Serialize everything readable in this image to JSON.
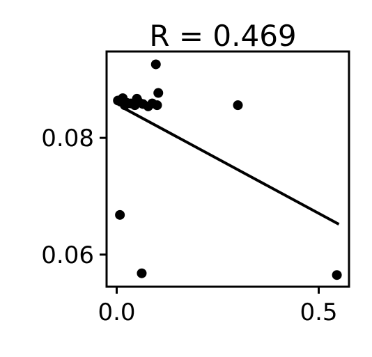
{
  "chart_data": {
    "type": "scatter",
    "title": "R = 0.469",
    "xlabel": "",
    "ylabel": "",
    "xlim": [
      -0.025,
      0.575
    ],
    "ylim": [
      0.0545,
      0.0948
    ],
    "x_ticks": [
      {
        "value": 0.0,
        "label": "0.0"
      },
      {
        "value": 0.5,
        "label": "0.5"
      }
    ],
    "y_ticks": [
      {
        "value": 0.06,
        "label": "0.06"
      },
      {
        "value": 0.08,
        "label": "0.08"
      }
    ],
    "grid": false,
    "points": [
      {
        "x": 0.003,
        "y": 0.0864
      },
      {
        "x": 0.01,
        "y": 0.0862
      },
      {
        "x": 0.015,
        "y": 0.0868
      },
      {
        "x": 0.02,
        "y": 0.0856
      },
      {
        "x": 0.025,
        "y": 0.086
      },
      {
        "x": 0.035,
        "y": 0.0859
      },
      {
        "x": 0.045,
        "y": 0.0856
      },
      {
        "x": 0.05,
        "y": 0.0867
      },
      {
        "x": 0.055,
        "y": 0.0861
      },
      {
        "x": 0.065,
        "y": 0.0858
      },
      {
        "x": 0.078,
        "y": 0.0854
      },
      {
        "x": 0.088,
        "y": 0.0859
      },
      {
        "x": 0.1,
        "y": 0.0856
      },
      {
        "x": 0.103,
        "y": 0.0877
      },
      {
        "x": 0.097,
        "y": 0.0926
      },
      {
        "x": 0.3,
        "y": 0.0856
      },
      {
        "x": 0.008,
        "y": 0.0668
      },
      {
        "x": 0.062,
        "y": 0.0568
      },
      {
        "x": 0.545,
        "y": 0.0565
      }
    ],
    "fit_line": {
      "x": [
        0.02,
        0.55
      ],
      "y": [
        0.085,
        0.0652
      ]
    },
    "colors": {
      "points": "#000000",
      "line": "#000000",
      "axes": "#000000"
    }
  }
}
